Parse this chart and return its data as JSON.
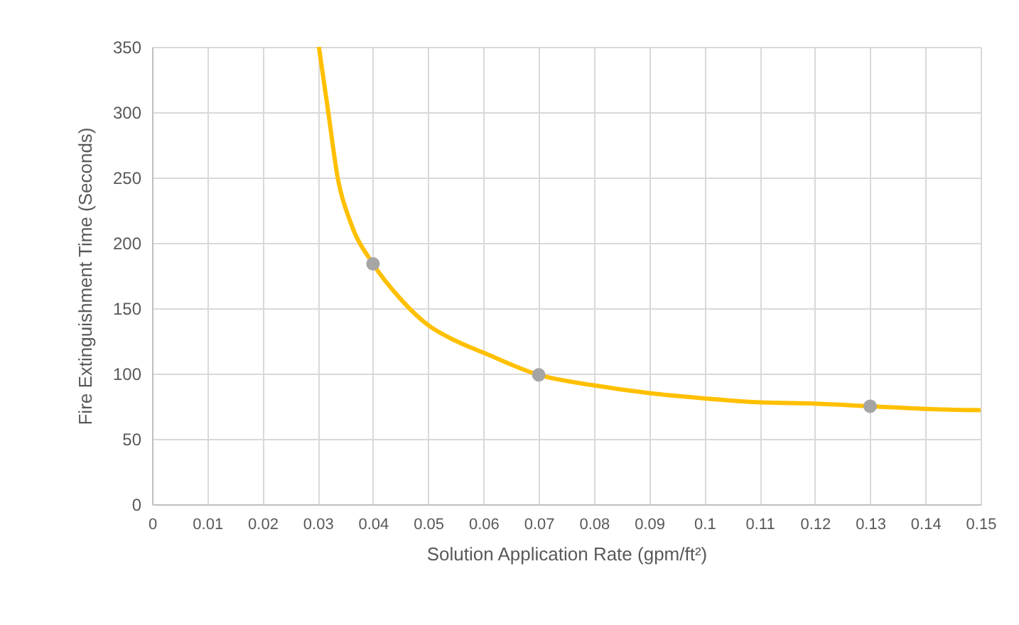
{
  "chart_data": {
    "type": "line",
    "xlabel": "Solution Application Rate (gpm/ft²)",
    "ylabel": "Fire Extinguishment Time (Seconds)",
    "xlim": [
      0,
      0.15
    ],
    "ylim": [
      0,
      350
    ],
    "xticks": [
      0,
      0.01,
      0.02,
      0.03,
      0.04,
      0.05,
      0.06,
      0.07,
      0.08,
      0.09,
      0.1,
      0.11,
      0.12,
      0.13,
      0.14,
      0.15
    ],
    "yticks": [
      0,
      50,
      100,
      150,
      200,
      250,
      300,
      350
    ],
    "grid": true,
    "series": [
      {
        "type": "line",
        "color": "#ffc000",
        "x": [
          0.0302,
          0.0319,
          0.0336,
          0.036,
          0.04,
          0.045,
          0.05,
          0.055,
          0.06,
          0.07,
          0.08,
          0.09,
          0.1,
          0.11,
          0.12,
          0.13,
          0.14,
          0.15
        ],
        "values": [
          350,
          300,
          250,
          215,
          184,
          157,
          137,
          125,
          116,
          99,
          91,
          85,
          81,
          78,
          77,
          75,
          73,
          72
        ]
      },
      {
        "type": "scatter",
        "color": "#a5a5a5",
        "marker": "circle",
        "x": [
          0.04,
          0.07,
          0.13
        ],
        "values": [
          184,
          99,
          75
        ]
      }
    ]
  }
}
